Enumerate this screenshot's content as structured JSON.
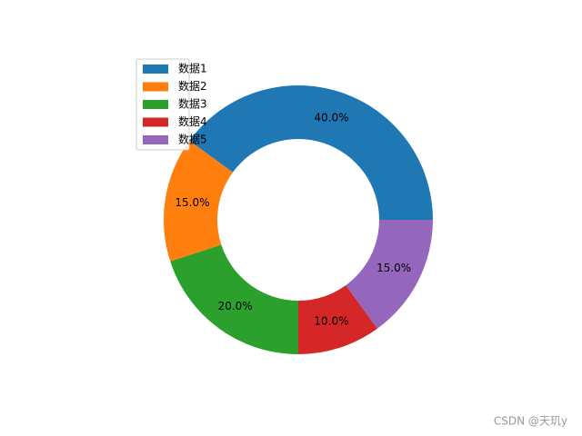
{
  "chart_data": {
    "type": "donut",
    "categories": [
      "数据1",
      "数据2",
      "数据3",
      "数据4",
      "数据5"
    ],
    "values": [
      40,
      15,
      20,
      10,
      15
    ],
    "value_labels": [
      "40.0%",
      "15.0%",
      "20.0%",
      "10.0%",
      "15.0%"
    ],
    "colors": [
      "#1f77b4",
      "#ff7f0e",
      "#2ca02c",
      "#d62728",
      "#9467bd"
    ],
    "legend": "upper left"
  },
  "watermark": "CSDN @天玑y"
}
